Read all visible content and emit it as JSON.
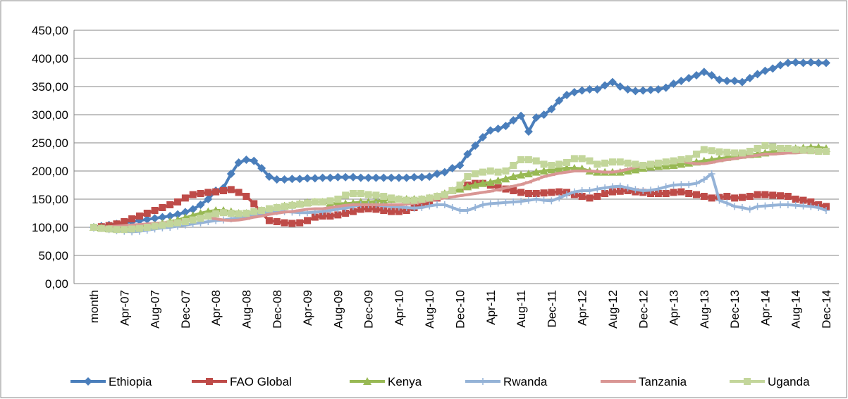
{
  "chart_data": {
    "type": "line",
    "categories": [
      "month",
      null,
      null,
      null,
      "Apr-07",
      null,
      null,
      null,
      "Aug-07",
      null,
      null,
      null,
      "Dec-07",
      null,
      null,
      null,
      "Apr-08",
      null,
      null,
      null,
      "Aug-08",
      null,
      null,
      null,
      "Dec-08",
      null,
      null,
      null,
      "Apr-09",
      null,
      null,
      null,
      "Aug-09",
      null,
      null,
      null,
      "Dec-09",
      null,
      null,
      null,
      "Apr-10",
      null,
      null,
      null,
      "Aug-10",
      null,
      null,
      null,
      "Dec-10",
      null,
      null,
      null,
      "Apr-11",
      null,
      null,
      null,
      "Aug-11",
      null,
      null,
      null,
      "Dec-11",
      null,
      null,
      null,
      "Apr-12",
      null,
      null,
      null,
      "Aug-12",
      null,
      null,
      null,
      "Dec-12",
      null,
      null,
      null,
      "Apr-13",
      null,
      null,
      null,
      "Aug-13",
      null,
      null,
      null,
      "Dec-13",
      null,
      null,
      null,
      "Apr-14",
      null,
      null,
      null,
      "Aug-14",
      null,
      null,
      null,
      "Dec-14"
    ],
    "series": [
      {
        "name": "Ethiopia",
        "color": "#4a7ebb",
        "marker": "diamond",
        "values": [
          100,
          102,
          104,
          106,
          108,
          110,
          112,
          114,
          116,
          118,
          120,
          123,
          127,
          132,
          140,
          150,
          165,
          170,
          195,
          215,
          220,
          218,
          205,
          190,
          185,
          185,
          186,
          186,
          187,
          187,
          188,
          188,
          189,
          189,
          189,
          188,
          188,
          188,
          188,
          188,
          188,
          188,
          189,
          189,
          190,
          195,
          198,
          205,
          210,
          230,
          245,
          260,
          272,
          275,
          280,
          290,
          298,
          270,
          295,
          300,
          310,
          325,
          335,
          340,
          343,
          345,
          345,
          352,
          358,
          350,
          345,
          342,
          343,
          344,
          345,
          348,
          355,
          360,
          365,
          370,
          376,
          370,
          362,
          360,
          360,
          358,
          365,
          372,
          378,
          382,
          388,
          392,
          393,
          392,
          393,
          392,
          392
        ]
      },
      {
        "name": "FAO Global",
        "color": "#be4b48",
        "marker": "square",
        "values": [
          100,
          101,
          103,
          106,
          110,
          115,
          120,
          125,
          130,
          135,
          140,
          145,
          152,
          158,
          160,
          162,
          163,
          165,
          167,
          162,
          155,
          142,
          125,
          112,
          110,
          108,
          107,
          108,
          112,
          118,
          120,
          120,
          122,
          125,
          128,
          132,
          133,
          132,
          130,
          128,
          128,
          130,
          135,
          140,
          145,
          152,
          158,
          165,
          170,
          175,
          178,
          178,
          175,
          170,
          168,
          165,
          162,
          160,
          160,
          161,
          162,
          163,
          162,
          158,
          155,
          152,
          155,
          160,
          163,
          164,
          165,
          163,
          162,
          160,
          160,
          160,
          162,
          163,
          160,
          158,
          155,
          152,
          153,
          155,
          152,
          153,
          155,
          158,
          158,
          157,
          156,
          155,
          150,
          148,
          145,
          140,
          137
        ]
      },
      {
        "name": "Kenya",
        "color": "#98b954",
        "marker": "triangle",
        "values": [
          100,
          99,
          98,
          97,
          97,
          98,
          100,
          102,
          104,
          107,
          110,
          113,
          117,
          121,
          125,
          128,
          130,
          130,
          128,
          125,
          125,
          127,
          130,
          132,
          135,
          138,
          140,
          142,
          144,
          145,
          145,
          143,
          142,
          142,
          143,
          145,
          145,
          146,
          148,
          150,
          150,
          150,
          150,
          150,
          152,
          155,
          160,
          165,
          168,
          172,
          175,
          178,
          180,
          183,
          186,
          190,
          193,
          195,
          198,
          200,
          202,
          204,
          205,
          205,
          204,
          200,
          198,
          198,
          198,
          198,
          200,
          202,
          205,
          207,
          208,
          209,
          210,
          212,
          214,
          216,
          218,
          220,
          222,
          224,
          226,
          228,
          229,
          230,
          232,
          234,
          236,
          238,
          240,
          241,
          242,
          242,
          240
        ]
      },
      {
        "name": "Rwanda",
        "color": "#95b3d7",
        "marker": "plus",
        "values": [
          100,
          98,
          96,
          94,
          93,
          92,
          93,
          95,
          97,
          99,
          100,
          102,
          104,
          106,
          108,
          110,
          112,
          113,
          115,
          117,
          120,
          122,
          125,
          127,
          128,
          128,
          127,
          126,
          126,
          127,
          128,
          130,
          132,
          134,
          137,
          140,
          140,
          140,
          138,
          137,
          136,
          135,
          134,
          135,
          138,
          140,
          140,
          135,
          130,
          130,
          135,
          140,
          142,
          143,
          144,
          145,
          146,
          148,
          150,
          148,
          147,
          152,
          158,
          163,
          165,
          165,
          168,
          170,
          172,
          173,
          170,
          167,
          165,
          166,
          168,
          172,
          175,
          176,
          176,
          178,
          185,
          195,
          148,
          143,
          137,
          135,
          132,
          137,
          138,
          139,
          140,
          140,
          139,
          138,
          137,
          135,
          130
        ]
      },
      {
        "name": "Tanzania",
        "color": "#d99694",
        "marker": "dash",
        "values": [
          100,
          100,
          101,
          102,
          103,
          104,
          105,
          106,
          107,
          108,
          109,
          110,
          112,
          114,
          116,
          118,
          115,
          113,
          112,
          113,
          115,
          118,
          120,
          123,
          125,
          127,
          128,
          130,
          132,
          133,
          133,
          135,
          137,
          139,
          140,
          140,
          140,
          140,
          140,
          140,
          140,
          141,
          143,
          145,
          148,
          150,
          152,
          154,
          156,
          158,
          160,
          162,
          164,
          167,
          170,
          173,
          176,
          180,
          185,
          190,
          193,
          196,
          198,
          200,
          200,
          200,
          199,
          198,
          198,
          200,
          203,
          207,
          210,
          213,
          215,
          216,
          216,
          217,
          215,
          213,
          213,
          215,
          218,
          220,
          222,
          224,
          226,
          228,
          230,
          230,
          231,
          232,
          232,
          233,
          233,
          234,
          235
        ]
      },
      {
        "name": "Uganda",
        "color": "#c3d69b",
        "marker": "square",
        "values": [
          100,
          98,
          97,
          96,
          96,
          97,
          98,
          100,
          102,
          104,
          106,
          108,
          110,
          113,
          116,
          120,
          124,
          126,
          125,
          124,
          125,
          128,
          130,
          133,
          135,
          137,
          139,
          141,
          143,
          145,
          145,
          147,
          150,
          157,
          160,
          160,
          158,
          157,
          155,
          152,
          150,
          148,
          148,
          150,
          152,
          155,
          158,
          165,
          175,
          190,
          195,
          198,
          200,
          198,
          200,
          210,
          220,
          220,
          218,
          212,
          210,
          212,
          215,
          222,
          222,
          218,
          212,
          214,
          216,
          216,
          214,
          212,
          210,
          212,
          214,
          216,
          218,
          220,
          222,
          230,
          238,
          236,
          234,
          233,
          232,
          232,
          235,
          240,
          245,
          243,
          240,
          240,
          238,
          237,
          236,
          235,
          235
        ]
      }
    ],
    "ylim": [
      0,
      450
    ],
    "yticks": [
      {
        "value": 0,
        "label": "0,00"
      },
      {
        "value": 50,
        "label": "50,00"
      },
      {
        "value": 100,
        "label": "100,00"
      },
      {
        "value": 150,
        "label": "150,00"
      },
      {
        "value": 200,
        "label": "200,00"
      },
      {
        "value": 250,
        "label": "250,00"
      },
      {
        "value": 300,
        "label": "300,00"
      },
      {
        "value": 350,
        "label": "350,00"
      },
      {
        "value": 400,
        "label": "400,00"
      },
      {
        "value": 450,
        "label": "450,00"
      }
    ],
    "grid": true,
    "legend": "bottom"
  }
}
